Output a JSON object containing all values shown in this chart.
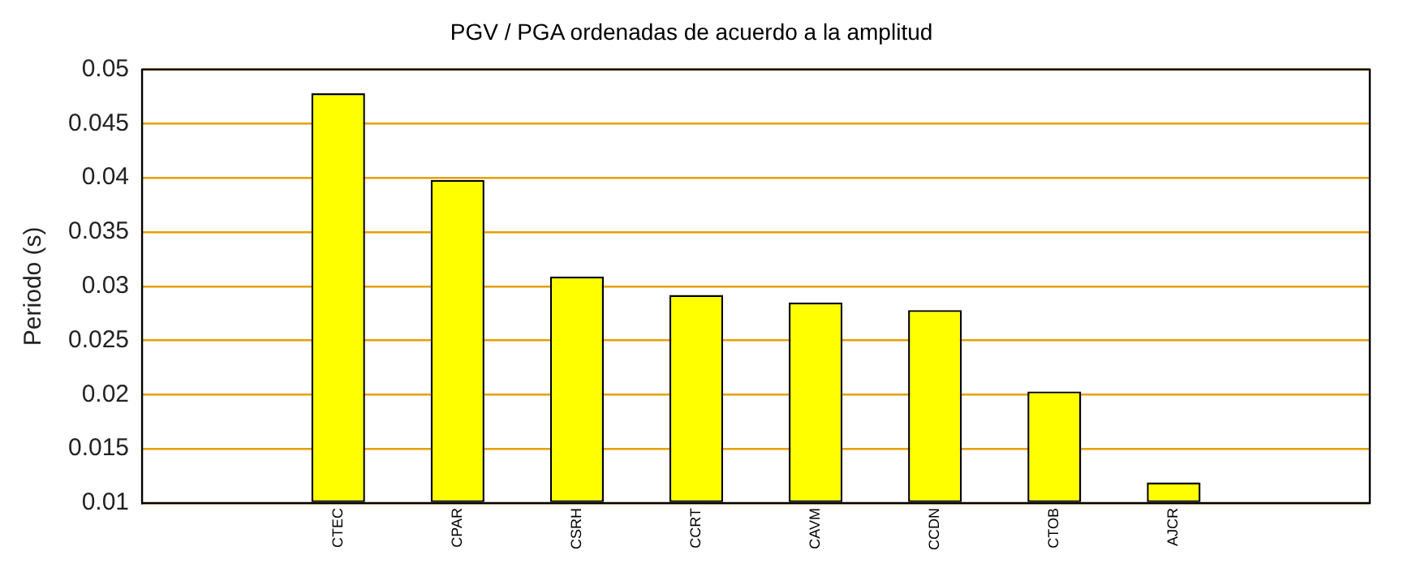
{
  "chart_data": {
    "type": "bar",
    "title": "PGV / PGA ordenadas de acuerdo a la amplitud",
    "ylabel": "Periodo (s)",
    "categories": [
      "CTEC",
      "CPAR",
      "CSRH",
      "CCRT",
      "CAVM",
      "CCDN",
      "CTOB",
      "AJCR"
    ],
    "values": [
      0.0478,
      0.0398,
      0.0309,
      0.0292,
      0.0285,
      0.0278,
      0.0203,
      0.0119
    ],
    "color": "#ffff00",
    "ylim": [
      0.01,
      0.05
    ],
    "yticks": [
      0.01,
      0.015,
      0.02,
      0.025,
      0.03,
      0.035,
      0.04,
      0.045,
      0.05
    ],
    "grid": "y",
    "legend": false
  }
}
